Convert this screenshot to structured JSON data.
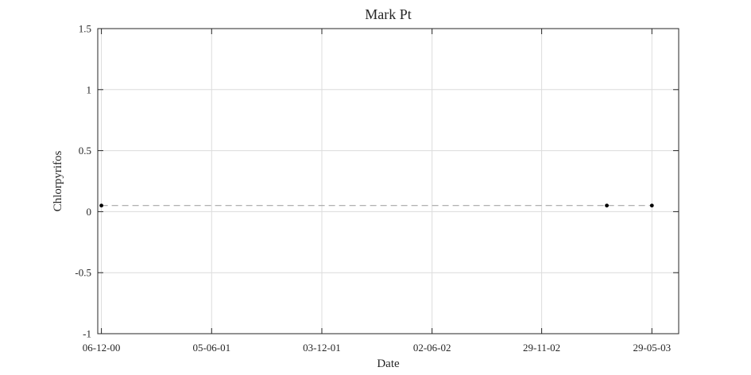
{
  "chart_data": {
    "type": "line",
    "title": "Mark Pt",
    "xlabel": "Date",
    "ylabel": "Chlorpyrifos",
    "x_scale": "date",
    "xlim": [
      "2000-11-30",
      "2003-07-12"
    ],
    "ylim": [
      -1,
      1.5
    ],
    "x_ticks": [
      {
        "date": "2000-12-06",
        "label": "06-12-00"
      },
      {
        "date": "2001-06-05",
        "label": "05-06-01"
      },
      {
        "date": "2001-12-03",
        "label": "03-12-01"
      },
      {
        "date": "2002-06-02",
        "label": "02-06-02"
      },
      {
        "date": "2002-11-29",
        "label": "29-11-02"
      },
      {
        "date": "2003-05-29",
        "label": "29-05-03"
      }
    ],
    "y_ticks": [
      {
        "value": 1.5,
        "label": "1.5"
      },
      {
        "value": 1,
        "label": "1"
      },
      {
        "value": 0.5,
        "label": "0.5"
      },
      {
        "value": 0,
        "label": "0"
      },
      {
        "value": -0.5,
        "label": "-0.5"
      },
      {
        "value": -1,
        "label": "-1"
      }
    ],
    "grid": true,
    "series": [
      {
        "line_style": "dashed",
        "line_color": "#a6a6a6",
        "marker_color": "#000000",
        "points": [
          {
            "x": "2000-12-06",
            "y": 0.05
          },
          {
            "x": "2003-03-16",
            "y": 0.05
          },
          {
            "x": "2003-05-29",
            "y": 0.05
          }
        ]
      }
    ]
  }
}
